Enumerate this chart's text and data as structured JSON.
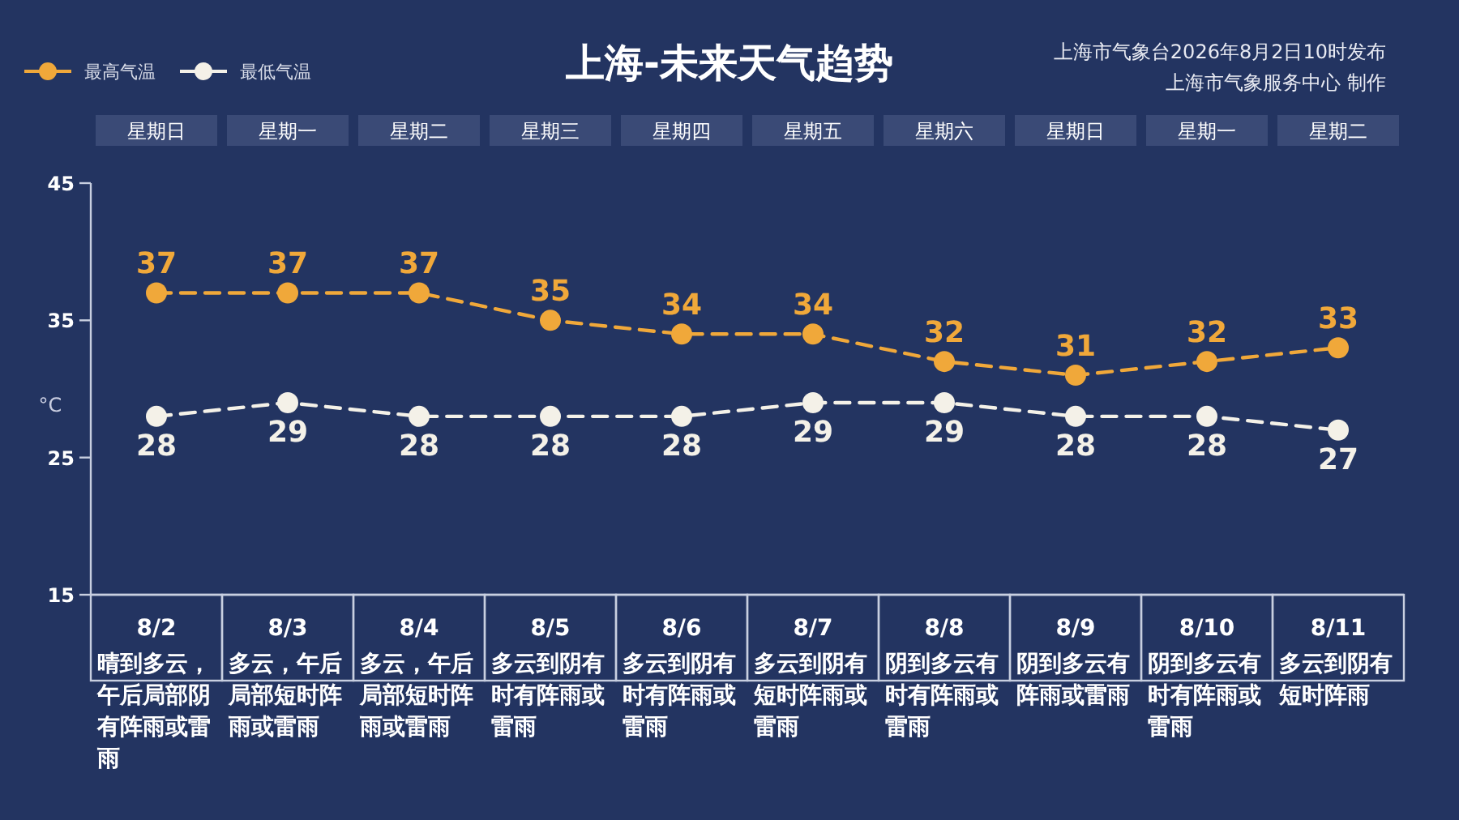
{
  "chart_data": {
    "type": "line",
    "title": "上海-未来天气趋势",
    "ylabel": "°C",
    "categories": [
      "星期日\n8/2\n晴到多云，午后局部阴有阵雨或雷雨",
      "星期一\n8/3\n多云，午后局部短时阵雨或雷雨",
      "星期二\n8/4\n多云，午后局部短时阵雨或雷雨",
      "星期三\n8/5\n多云到阴有时有阵雨或雷雨",
      "星期四\n8/6\n多云到阴有时有阵雨或雷雨",
      "星期五\n8/7\n多云到阴有短时阵雨或雷雨",
      "星期六\n8/8\n阴到多云有时有阵雨或雷雨",
      "星期日\n8/9\n阴到多云有阵雨或雷雨",
      "星期一\n8/10\n阴到多云有时有阵雨或雷雨",
      "星期二\n8/11\n多云到阴有短时阵雨"
    ],
    "series": [
      {
        "name": "最高气温",
        "color": "#f0a83a",
        "values": [
          37,
          37,
          37,
          35,
          34,
          34,
          32,
          31,
          32,
          33
        ]
      },
      {
        "name": "最低气温",
        "color": "#f4f1e8",
        "values": [
          28,
          29,
          28,
          28,
          28,
          29,
          29,
          28,
          28,
          27
        ]
      }
    ],
    "ylim": [
      15,
      45
    ],
    "yticks": [
      15,
      25,
      35,
      45
    ],
    "data_labels": true,
    "legend": "top left",
    "marker": "circle",
    "line_style": "dashed",
    "annotations": [
      "上海市气象台2026年8月2日10时发布",
      "上海市气象服务中心 制作"
    ]
  }
}
